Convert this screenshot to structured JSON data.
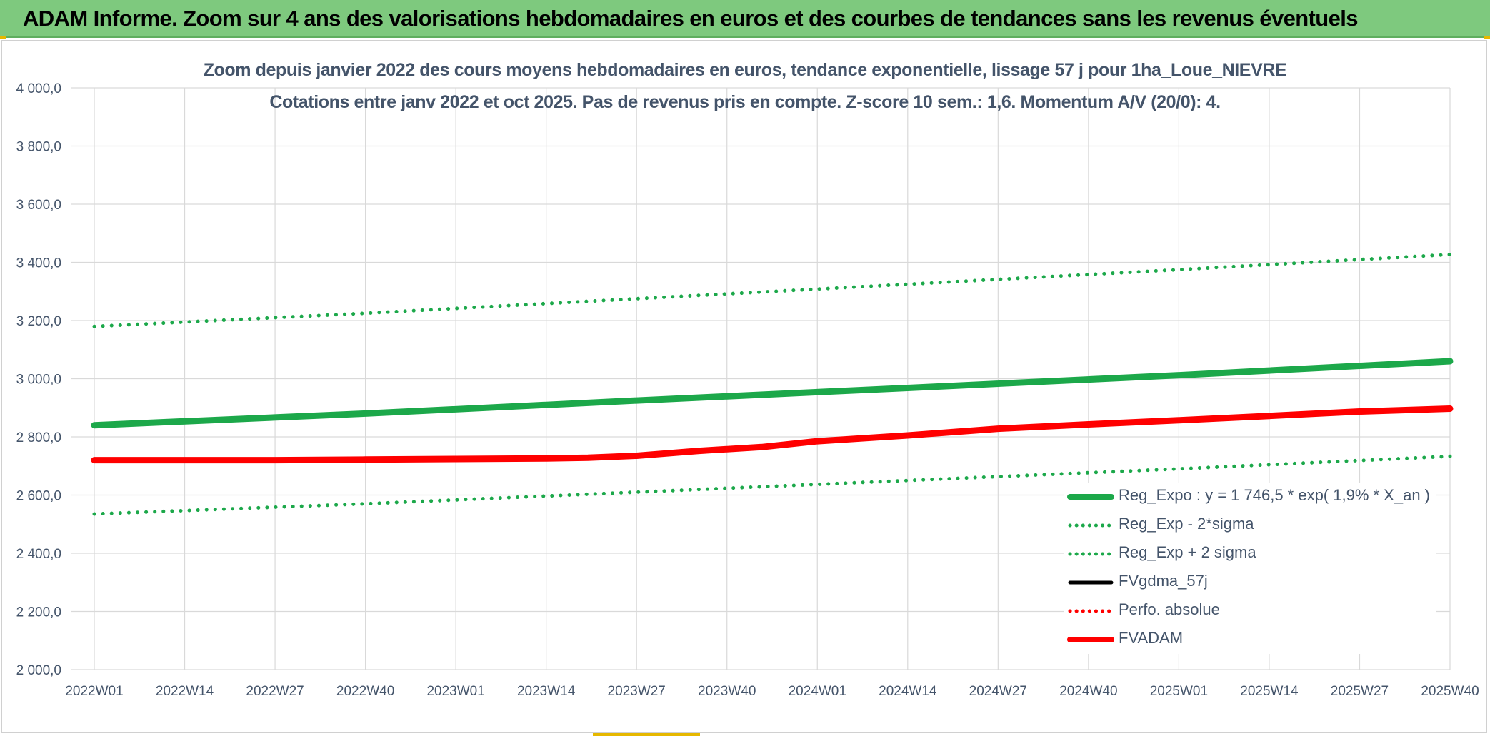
{
  "banner": {
    "title": "ADAM Informe. Zoom sur 4 ans des valorisations hebdomadaires en euros et des courbes de tendances sans les revenus éventuels",
    "background_color": "#7ec97e"
  },
  "chart_data": {
    "type": "line",
    "title": "Zoom depuis janvier 2022 des cours moyens hebdomadaires en euros, tendance exponentielle, lissage 57 j pour 1ha_Loue_NIEVRE",
    "subtitle": "Cotations entre janv 2022 et oct 2025. Pas de revenus pris en compte. Z-score 10 sem.: 1,6. Momentum A/V (20/0): 4.",
    "xlabel": "",
    "ylabel": "",
    "ylim": [
      2000,
      4000
    ],
    "y_ticks": [
      "4 000,0",
      "3 800,0",
      "3 600,0",
      "3 400,0",
      "3 200,0",
      "3 000,0",
      "2 800,0",
      "2 600,0",
      "2 400,0",
      "2 200,0",
      "2 000,0"
    ],
    "x_tick_labels": [
      "2022W01",
      "2022W14",
      "2022W27",
      "2022W40",
      "2023W01",
      "2023W14",
      "2023W27",
      "2023W40",
      "2024W01",
      "2024W14",
      "2024W27",
      "2024W40",
      "2025W01",
      "2025W14",
      "2025W27",
      "2025W40"
    ],
    "grid": true,
    "legend_position": "bottom-right",
    "series": [
      {
        "name": "Reg_Expo : y = 1 746,5 * exp( 1,9% *  X_an )",
        "color": "#1ca84a",
        "style": "solid",
        "width": "thick",
        "points": [
          [
            "2022W01",
            2840
          ],
          [
            "2022W40",
            2880
          ],
          [
            "2023W27",
            2925
          ],
          [
            "2024W14",
            2968
          ],
          [
            "2025W01",
            3012
          ],
          [
            "2025W40",
            3060
          ]
        ]
      },
      {
        "name": "Reg_Exp - 2*sigma",
        "color": "#1ca84a",
        "style": "dotted",
        "width": "medium",
        "points": [
          [
            "2022W01",
            2535
          ],
          [
            "2022W40",
            2570
          ],
          [
            "2023W27",
            2610
          ],
          [
            "2024W14",
            2650
          ],
          [
            "2025W01",
            2690
          ],
          [
            "2025W40",
            2733
          ]
        ]
      },
      {
        "name": "Reg_Exp + 2 sigma",
        "color": "#1ca84a",
        "style": "dotted",
        "width": "medium",
        "points": [
          [
            "2022W01",
            3180
          ],
          [
            "2022W40",
            3225
          ],
          [
            "2023W27",
            3275
          ],
          [
            "2024W14",
            3325
          ],
          [
            "2025W01",
            3375
          ],
          [
            "2025W40",
            3427
          ]
        ]
      },
      {
        "name": "FVgdma_57j",
        "color": "#000000",
        "style": "solid",
        "width": "medium",
        "points": []
      },
      {
        "name": "Perfo. absolue",
        "color": "#ff0000",
        "style": "dotted",
        "width": "medium",
        "points": []
      },
      {
        "name": "FVADAM",
        "color": "#ff0000",
        "style": "solid",
        "width": "thick",
        "points": [
          [
            "2022W01",
            2720
          ],
          [
            "2022W27",
            2720
          ],
          [
            "2022W40",
            2722
          ],
          [
            "2023W01",
            2724
          ],
          [
            "2023W14",
            2726
          ],
          [
            "2023W20",
            2728
          ],
          [
            "2023W27",
            2735
          ],
          [
            "2023W36",
            2752
          ],
          [
            "2023W45",
            2765
          ],
          [
            "2024W01",
            2785
          ],
          [
            "2024W14",
            2805
          ],
          [
            "2024W27",
            2828
          ],
          [
            "2024W40",
            2843
          ],
          [
            "2025W01",
            2857
          ],
          [
            "2025W14",
            2872
          ],
          [
            "2025W27",
            2887
          ],
          [
            "2025W40",
            2897
          ]
        ]
      }
    ]
  }
}
